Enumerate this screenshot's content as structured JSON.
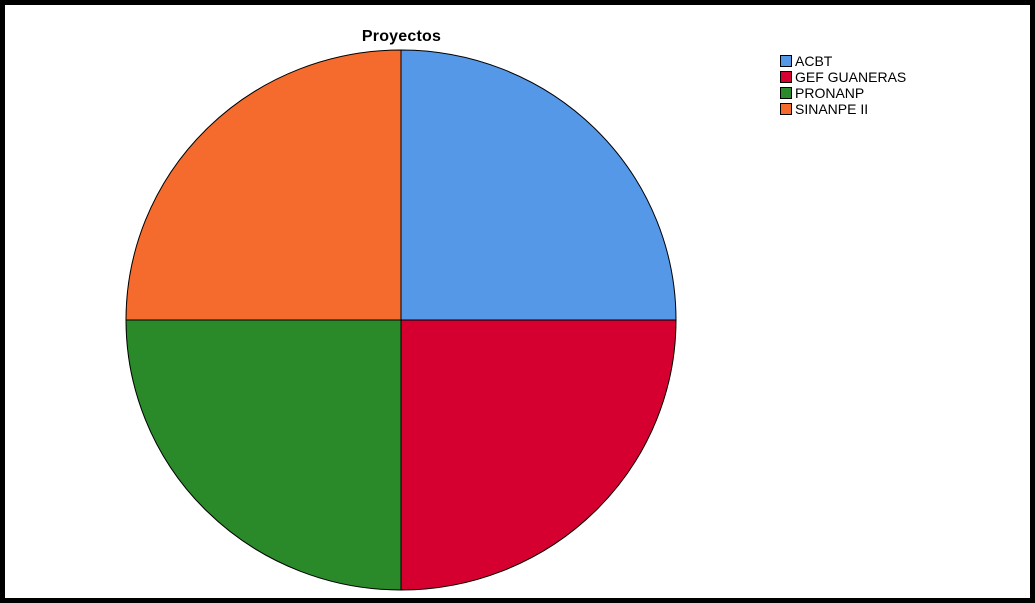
{
  "chart_data": {
    "type": "pie",
    "title": "Proyectos",
    "categories": [
      "ACBT",
      "GEF GUANERAS",
      "PRONANP",
      "SINANPE II"
    ],
    "values": [
      25,
      25,
      25,
      25
    ],
    "colors": [
      "#5598e7",
      "#d5002f",
      "#2a8a2a",
      "#f46b2d"
    ],
    "legend_position": "top-right"
  }
}
